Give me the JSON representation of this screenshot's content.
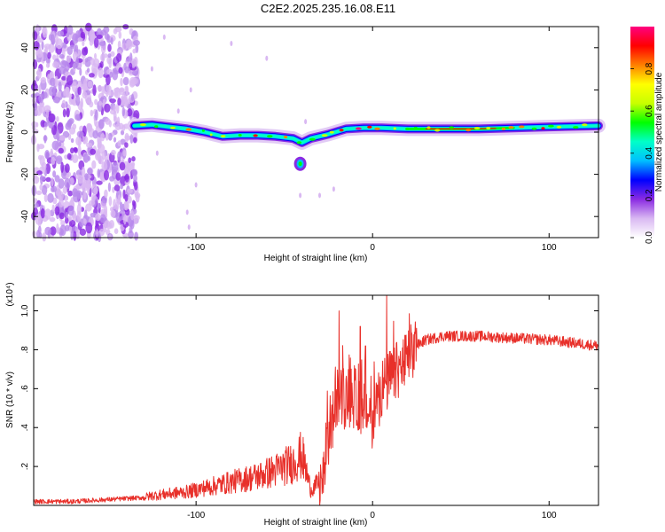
{
  "title": "C2E2.2025.235.16.08.E11",
  "chart_data": [
    {
      "type": "heatmap",
      "name": "spectrogram",
      "xlabel": "Height of straight line (km)",
      "ylabel": "Frequency (Hz)",
      "xlim": [
        -192,
        128
      ],
      "ylim": [
        -50,
        50
      ],
      "xticks": [
        -100,
        0,
        100
      ],
      "yticks": [
        -40,
        -20,
        0,
        20,
        40
      ],
      "colorbar": {
        "label": "Normalized spectral amplitude",
        "range": [
          0,
          1
        ],
        "ticks": [
          "0.0",
          "0.2",
          "0.4",
          "0.6",
          "0.8"
        ],
        "colors": [
          "#ffffff",
          "#d9b8f2",
          "#8a2be2",
          "#0000ff",
          "#00bfff",
          "#00ffc8",
          "#00ff00",
          "#c8ff00",
          "#ffff00",
          "#ff8000",
          "#ff0000",
          "#ff0080"
        ]
      },
      "ridge": {
        "x": [
          -135,
          -125,
          -115,
          -105,
          -95,
          -85,
          -75,
          -65,
          -55,
          -45,
          -40,
          -35,
          -25,
          -15,
          -5,
          5,
          20,
          40,
          60,
          80,
          100,
          128
        ],
        "y": [
          3,
          3.5,
          2.5,
          1.5,
          0,
          -2,
          -1.5,
          -1.5,
          -2,
          -3,
          -5,
          -3,
          -1,
          1.5,
          2,
          2,
          1.5,
          1.5,
          1.5,
          2,
          2.5,
          3
        ]
      },
      "secondary_blob": {
        "x": -41,
        "y": -15
      },
      "noise_region_end_km": -133
    },
    {
      "type": "line",
      "name": "snr",
      "xlabel": "Height of straight line (km)",
      "ylabel": "SNR (10 * v/v)",
      "y_scale_label": "(x10⁴)",
      "xlim": [
        -192,
        128
      ],
      "ylim": [
        0,
        1.08
      ],
      "xticks": [
        -100,
        0,
        100
      ],
      "yticks": [
        0.2,
        0.4,
        0.6,
        0.8,
        1.0
      ],
      "series": [
        {
          "name": "SNR",
          "color": "#e8302a",
          "x": [
            -192,
            -170,
            -150,
            -130,
            -125,
            -115,
            -105,
            -95,
            -85,
            -75,
            -65,
            -55,
            -45,
            -40,
            -35,
            -30,
            -20,
            -10,
            -5,
            0,
            5,
            10,
            15,
            20,
            25,
            30,
            40,
            60,
            80,
            100,
            128
          ],
          "y": [
            0.02,
            0.02,
            0.03,
            0.04,
            0.05,
            0.06,
            0.07,
            0.09,
            0.11,
            0.13,
            0.15,
            0.18,
            0.22,
            0.26,
            0.08,
            0.12,
            0.55,
            0.55,
            0.5,
            0.45,
            0.6,
            0.65,
            0.7,
            0.75,
            0.82,
            0.85,
            0.87,
            0.87,
            0.86,
            0.85,
            0.82
          ]
        }
      ],
      "spikes": [
        {
          "x": -19,
          "y": 1.0
        },
        {
          "x": -7,
          "y": 0.92
        },
        {
          "x": 8,
          "y": 1.08
        },
        {
          "x": -4,
          "y": 0.82
        }
      ]
    }
  ]
}
